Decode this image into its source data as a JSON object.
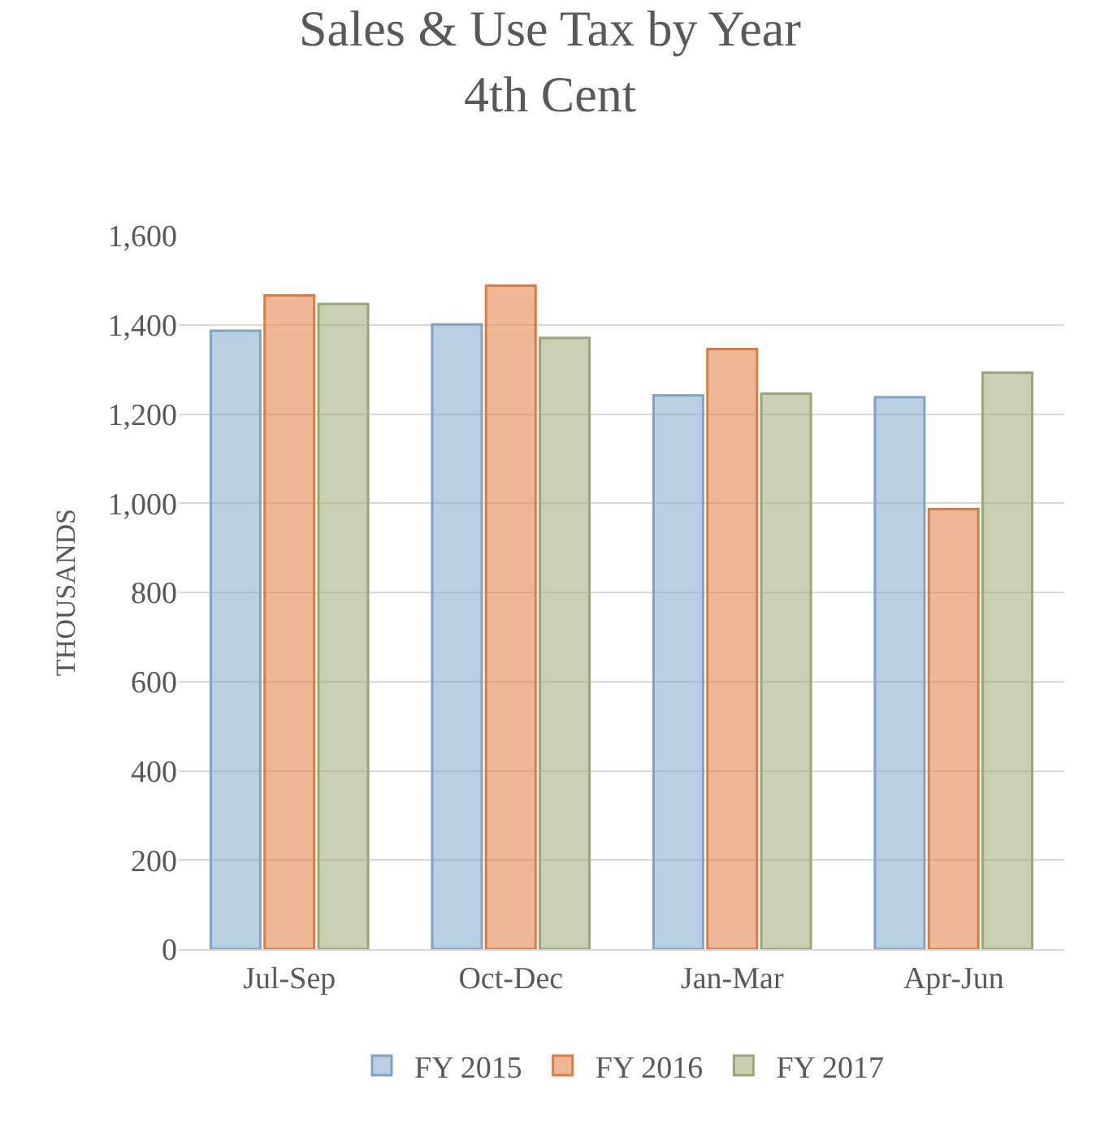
{
  "chart_data": {
    "type": "bar",
    "title": "Sales & Use Tax by Year\n4th Cent",
    "ylabel": "THOUSANDS",
    "categories": [
      "Jul-Sep",
      "Oct-Dec",
      "Jan-Mar",
      "Apr-Jun"
    ],
    "series": [
      {
        "name": "FY 2015",
        "color": "#7ea5c8",
        "values": [
          1387,
          1401,
          1242,
          1238
        ]
      },
      {
        "name": "FY 2016",
        "color": "#e07b3f",
        "values": [
          1466,
          1488,
          1346,
          987
        ]
      },
      {
        "name": "FY 2017",
        "color": "#9aa774",
        "values": [
          1447,
          1371,
          1246,
          1293
        ]
      }
    ],
    "ylim": [
      0,
      1600
    ],
    "yticks": [
      {
        "value": 0,
        "label": "0"
      },
      {
        "value": 200,
        "label": "200"
      },
      {
        "value": 400,
        "label": "400"
      },
      {
        "value": 600,
        "label": "600"
      },
      {
        "value": 800,
        "label": "800"
      },
      {
        "value": 1000,
        "label": "1,000"
      },
      {
        "value": 1200,
        "label": "1,200"
      },
      {
        "value": 1400,
        "label": "1,400"
      },
      {
        "value": 1600,
        "label": "1,600"
      }
    ],
    "grid": "y",
    "legend": "bottom"
  }
}
